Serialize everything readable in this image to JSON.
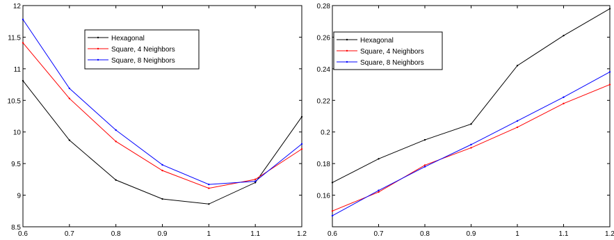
{
  "chart_data": [
    {
      "type": "line",
      "title": "",
      "xlabel": "",
      "ylabel": "",
      "xlim": [
        0.6,
        1.2
      ],
      "ylim": [
        8.5,
        12
      ],
      "xticks": [
        "0.6",
        "0.7",
        "0.8",
        "0.9",
        "1",
        "1.1",
        "1.2"
      ],
      "yticks": [
        "8.5",
        "9",
        "9.5",
        "10",
        "10.5",
        "11",
        "11.5",
        "12"
      ],
      "grid": false,
      "legend_position": "top-center",
      "x": [
        0.6,
        0.7,
        0.8,
        0.9,
        1.0,
        1.1,
        1.2
      ],
      "series": [
        {
          "name": "Hexagonal",
          "color": "#000000",
          "values": [
            10.81,
            9.87,
            9.24,
            8.94,
            8.86,
            9.2,
            10.24
          ]
        },
        {
          "name": "Square, 4 Neighbors",
          "color": "#ff0000",
          "values": [
            11.41,
            10.53,
            9.85,
            9.39,
            9.11,
            9.25,
            9.73
          ]
        },
        {
          "name": "Square, 8 Neighbors",
          "color": "#0000ff",
          "values": [
            11.78,
            10.69,
            10.03,
            9.48,
            9.17,
            9.22,
            9.81
          ]
        }
      ]
    },
    {
      "type": "line",
      "title": "",
      "xlabel": "",
      "ylabel": "",
      "xlim": [
        0.6,
        1.2
      ],
      "ylim": [
        0.14,
        0.28
      ],
      "xticks": [
        "0.6",
        "0.7",
        "0.8",
        "0.9",
        "1",
        "1.1",
        "1.2"
      ],
      "yticks": [
        "0.16",
        "0.18",
        "0.2",
        "0.22",
        "0.24",
        "0.26",
        "0.28"
      ],
      "grid": false,
      "legend_position": "top-left",
      "x": [
        0.6,
        0.7,
        0.8,
        0.9,
        1.0,
        1.1,
        1.2
      ],
      "series": [
        {
          "name": "Hexagonal",
          "color": "#000000",
          "values": [
            0.168,
            0.183,
            0.195,
            0.205,
            0.242,
            0.261,
            0.278
          ]
        },
        {
          "name": "Square, 4 Neighbors",
          "color": "#ff0000",
          "values": [
            0.15,
            0.162,
            0.179,
            0.19,
            0.203,
            0.218,
            0.23
          ]
        },
        {
          "name": "Square, 8 Neighbors",
          "color": "#0000ff",
          "values": [
            0.147,
            0.163,
            0.178,
            0.192,
            0.207,
            0.222,
            0.238
          ]
        }
      ]
    }
  ]
}
